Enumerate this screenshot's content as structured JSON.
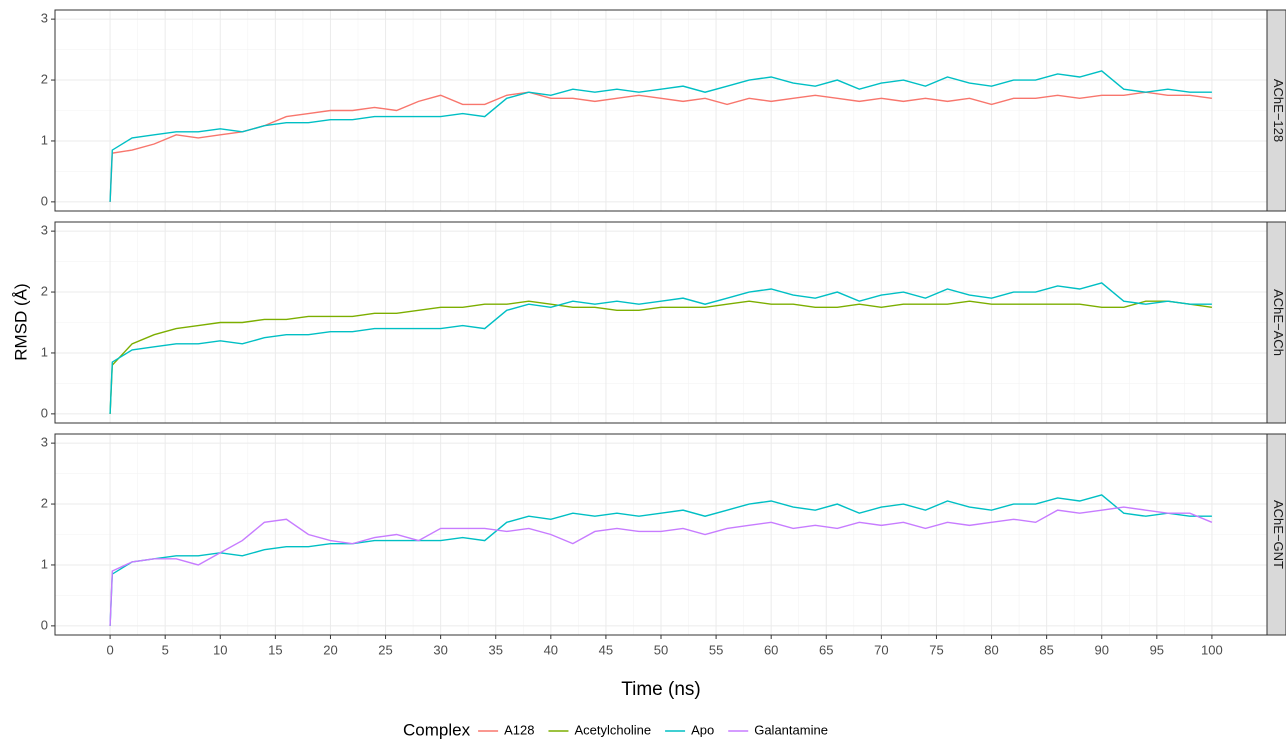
{
  "chart_data": {
    "type": "line",
    "x_label": "Time (ns)",
    "y_label": "RMSD (Å)",
    "legend_title": "Complex",
    "grid": true,
    "xlim": [
      -5,
      105
    ],
    "ylim": [
      -0.15,
      3.15
    ],
    "xticks": [
      0,
      5,
      10,
      15,
      20,
      25,
      30,
      35,
      40,
      45,
      50,
      55,
      60,
      65,
      70,
      75,
      80,
      85,
      90,
      95,
      100
    ],
    "yticks": [
      0,
      1,
      2,
      3
    ],
    "x": [
      0,
      0.2,
      2,
      4,
      6,
      8,
      10,
      12,
      14,
      16,
      18,
      20,
      22,
      24,
      26,
      28,
      30,
      32,
      34,
      36,
      38,
      40,
      42,
      44,
      46,
      48,
      50,
      52,
      54,
      56,
      58,
      60,
      62,
      64,
      66,
      68,
      70,
      72,
      74,
      76,
      78,
      80,
      82,
      84,
      86,
      88,
      90,
      92,
      94,
      96,
      98,
      100
    ],
    "facets": [
      {
        "label": "AChE−128",
        "series": [
          {
            "name": "A128",
            "color": "#F8766D",
            "values": [
              0,
              0.8,
              0.85,
              0.95,
              1.1,
              1.05,
              1.1,
              1.15,
              1.25,
              1.4,
              1.45,
              1.5,
              1.5,
              1.55,
              1.5,
              1.65,
              1.75,
              1.6,
              1.6,
              1.75,
              1.8,
              1.7,
              1.7,
              1.65,
              1.7,
              1.75,
              1.7,
              1.65,
              1.7,
              1.6,
              1.7,
              1.65,
              1.7,
              1.75,
              1.7,
              1.65,
              1.7,
              1.65,
              1.7,
              1.65,
              1.7,
              1.6,
              1.7,
              1.7,
              1.75,
              1.7,
              1.75,
              1.75,
              1.8,
              1.75,
              1.75,
              1.7
            ]
          },
          {
            "name": "Apo",
            "color": "#00BFC4",
            "values": [
              0,
              0.85,
              1.05,
              1.1,
              1.15,
              1.15,
              1.2,
              1.15,
              1.25,
              1.3,
              1.3,
              1.35,
              1.35,
              1.4,
              1.4,
              1.4,
              1.4,
              1.45,
              1.4,
              1.7,
              1.8,
              1.75,
              1.85,
              1.8,
              1.85,
              1.8,
              1.85,
              1.9,
              1.8,
              1.9,
              2.0,
              2.05,
              1.95,
              1.9,
              2.0,
              1.85,
              1.95,
              2.0,
              1.9,
              2.05,
              1.95,
              1.9,
              2.0,
              2.0,
              2.1,
              2.05,
              2.15,
              1.85,
              1.8,
              1.85,
              1.8,
              1.8
            ]
          }
        ]
      },
      {
        "label": "AChE−ACh",
        "series": [
          {
            "name": "Acetylcholine",
            "color": "#7CAE00",
            "values": [
              0,
              0.8,
              1.15,
              1.3,
              1.4,
              1.45,
              1.5,
              1.5,
              1.55,
              1.55,
              1.6,
              1.6,
              1.6,
              1.65,
              1.65,
              1.7,
              1.75,
              1.75,
              1.8,
              1.8,
              1.85,
              1.8,
              1.75,
              1.75,
              1.7,
              1.7,
              1.75,
              1.75,
              1.75,
              1.8,
              1.85,
              1.8,
              1.8,
              1.75,
              1.75,
              1.8,
              1.75,
              1.8,
              1.8,
              1.8,
              1.85,
              1.8,
              1.8,
              1.8,
              1.8,
              1.8,
              1.75,
              1.75,
              1.85,
              1.85,
              1.8,
              1.75
            ]
          },
          {
            "name": "Apo",
            "color": "#00BFC4",
            "values": [
              0,
              0.85,
              1.05,
              1.1,
              1.15,
              1.15,
              1.2,
              1.15,
              1.25,
              1.3,
              1.3,
              1.35,
              1.35,
              1.4,
              1.4,
              1.4,
              1.4,
              1.45,
              1.4,
              1.7,
              1.8,
              1.75,
              1.85,
              1.8,
              1.85,
              1.8,
              1.85,
              1.9,
              1.8,
              1.9,
              2.0,
              2.05,
              1.95,
              1.9,
              2.0,
              1.85,
              1.95,
              2.0,
              1.9,
              2.05,
              1.95,
              1.9,
              2.0,
              2.0,
              2.1,
              2.05,
              2.15,
              1.85,
              1.8,
              1.85,
              1.8,
              1.8
            ]
          }
        ]
      },
      {
        "label": "AChE−GNT",
        "series": [
          {
            "name": "Apo",
            "color": "#00BFC4",
            "values": [
              0,
              0.85,
              1.05,
              1.1,
              1.15,
              1.15,
              1.2,
              1.15,
              1.25,
              1.3,
              1.3,
              1.35,
              1.35,
              1.4,
              1.4,
              1.4,
              1.4,
              1.45,
              1.4,
              1.7,
              1.8,
              1.75,
              1.85,
              1.8,
              1.85,
              1.8,
              1.85,
              1.9,
              1.8,
              1.9,
              2.0,
              2.05,
              1.95,
              1.9,
              2.0,
              1.85,
              1.95,
              2.0,
              1.9,
              2.05,
              1.95,
              1.9,
              2.0,
              2.0,
              2.1,
              2.05,
              2.15,
              1.85,
              1.8,
              1.85,
              1.8,
              1.8
            ]
          },
          {
            "name": "Galantamine",
            "color": "#C77CFF",
            "values": [
              0,
              0.9,
              1.05,
              1.1,
              1.1,
              1.0,
              1.2,
              1.4,
              1.7,
              1.75,
              1.5,
              1.4,
              1.35,
              1.45,
              1.5,
              1.4,
              1.6,
              1.6,
              1.6,
              1.55,
              1.6,
              1.5,
              1.35,
              1.55,
              1.6,
              1.55,
              1.55,
              1.6,
              1.5,
              1.6,
              1.65,
              1.7,
              1.6,
              1.65,
              1.6,
              1.7,
              1.65,
              1.7,
              1.6,
              1.7,
              1.65,
              1.7,
              1.75,
              1.7,
              1.9,
              1.85,
              1.9,
              1.95,
              1.9,
              1.85,
              1.85,
              1.7
            ]
          }
        ]
      }
    ]
  }
}
